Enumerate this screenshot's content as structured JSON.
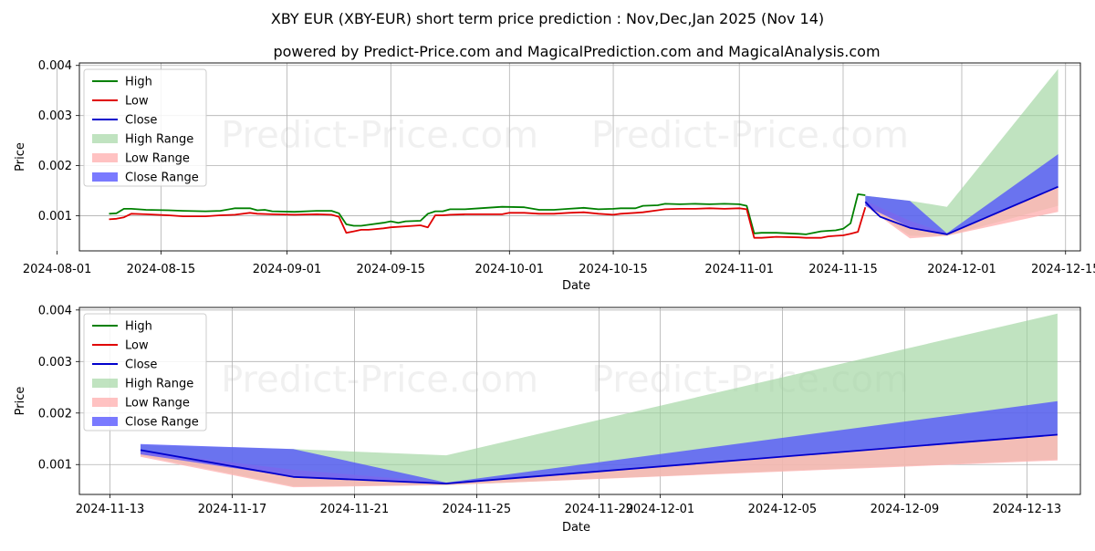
{
  "title": "XBY EUR (XBY-EUR) short term price prediction : Nov,Dec,Jan 2025 (Nov 14)",
  "subtitle": "powered by Predict-Price.com and MagicalPrediction.com and MagicalAnalysis.com",
  "watermark": "Predict-Price.com",
  "colors": {
    "high": "#008000",
    "low": "#e00000",
    "close": "#0000cc",
    "high_range": "#9ed49e",
    "low_range": "#ffb3b3",
    "close_range": "#4d4dff",
    "grid": "#b0b0b0"
  },
  "chart_data": [
    {
      "type": "line",
      "title": "",
      "xlabel": "Date",
      "ylabel": "Price",
      "xlim": [
        "2024-08-04",
        "2024-12-17"
      ],
      "ylim": [
        0.0003,
        0.00405
      ],
      "xticks": [
        "2024-08-01",
        "2024-08-15",
        "2024-09-01",
        "2024-09-15",
        "2024-10-01",
        "2024-10-15",
        "2024-11-01",
        "2024-11-15",
        "2024-12-01",
        "2024-12-15"
      ],
      "yticks": [
        0.001,
        0.002,
        0.003,
        0.004
      ],
      "ytick_labels": [
        "0.001",
        "0.002",
        "0.003",
        "0.004"
      ],
      "grid": true,
      "legend": {
        "location": "top-left",
        "entries": [
          "High",
          "Low",
          "Close",
          "High Range",
          "Low Range",
          "Close Range"
        ]
      },
      "series": [
        {
          "name": "High",
          "points": [
            [
              "2024-08-08",
              0.00104
            ],
            [
              "2024-08-09",
              0.00105
            ],
            [
              "2024-08-10",
              0.00114
            ],
            [
              "2024-08-11",
              0.00114
            ],
            [
              "2024-08-13",
              0.00112
            ],
            [
              "2024-08-16",
              0.00111
            ],
            [
              "2024-08-18",
              0.0011
            ],
            [
              "2024-08-21",
              0.00109
            ],
            [
              "2024-08-23",
              0.0011
            ],
            [
              "2024-08-25",
              0.00115
            ],
            [
              "2024-08-27",
              0.00115
            ],
            [
              "2024-08-28",
              0.00111
            ],
            [
              "2024-08-29",
              0.00112
            ],
            [
              "2024-08-30",
              0.00109
            ],
            [
              "2024-09-02",
              0.00108
            ],
            [
              "2024-09-05",
              0.0011
            ],
            [
              "2024-09-07",
              0.0011
            ],
            [
              "2024-09-08",
              0.00105
            ],
            [
              "2024-09-09",
              0.00083
            ],
            [
              "2024-09-10",
              0.0008
            ],
            [
              "2024-09-11",
              0.0008
            ],
            [
              "2024-09-12",
              0.00082
            ],
            [
              "2024-09-14",
              0.00086
            ],
            [
              "2024-09-15",
              0.00089
            ],
            [
              "2024-09-16",
              0.00086
            ],
            [
              "2024-09-17",
              0.00089
            ],
            [
              "2024-09-19",
              0.0009
            ],
            [
              "2024-09-20",
              0.00104
            ],
            [
              "2024-09-21",
              0.00109
            ],
            [
              "2024-09-22",
              0.00109
            ],
            [
              "2024-09-23",
              0.00113
            ],
            [
              "2024-09-25",
              0.00113
            ],
            [
              "2024-09-27",
              0.00115
            ],
            [
              "2024-09-30",
              0.00118
            ],
            [
              "2024-10-03",
              0.00117
            ],
            [
              "2024-10-05",
              0.00112
            ],
            [
              "2024-10-07",
              0.00112
            ],
            [
              "2024-10-09",
              0.00114
            ],
            [
              "2024-10-11",
              0.00116
            ],
            [
              "2024-10-13",
              0.00113
            ],
            [
              "2024-10-15",
              0.00114
            ],
            [
              "2024-10-16",
              0.00115
            ],
            [
              "2024-10-18",
              0.00115
            ],
            [
              "2024-10-19",
              0.0012
            ],
            [
              "2024-10-21",
              0.00121
            ],
            [
              "2024-10-22",
              0.00124
            ],
            [
              "2024-10-24",
              0.00123
            ],
            [
              "2024-10-26",
              0.00124
            ],
            [
              "2024-10-28",
              0.00123
            ],
            [
              "2024-10-30",
              0.00124
            ],
            [
              "2024-11-01",
              0.00123
            ],
            [
              "2024-11-02",
              0.0012
            ],
            [
              "2024-11-03",
              0.00065
            ],
            [
              "2024-11-04",
              0.00066
            ],
            [
              "2024-11-06",
              0.00066
            ],
            [
              "2024-11-09",
              0.00064
            ],
            [
              "2024-11-10",
              0.00063
            ],
            [
              "2024-11-11",
              0.00066
            ],
            [
              "2024-11-12",
              0.00069
            ],
            [
              "2024-11-13",
              0.0007
            ],
            [
              "2024-11-14",
              0.00071
            ],
            [
              "2024-11-15",
              0.00074
            ],
            [
              "2024-11-16",
              0.00085
            ],
            [
              "2024-11-17",
              0.00143
            ],
            [
              "2024-11-18",
              0.00141
            ]
          ]
        },
        {
          "name": "Low",
          "points": [
            [
              "2024-08-08",
              0.00093
            ],
            [
              "2024-08-09",
              0.00094
            ],
            [
              "2024-08-10",
              0.00097
            ],
            [
              "2024-08-11",
              0.00104
            ],
            [
              "2024-08-13",
              0.00103
            ],
            [
              "2024-08-16",
              0.00101
            ],
            [
              "2024-08-18",
              0.00099
            ],
            [
              "2024-08-21",
              0.00099
            ],
            [
              "2024-08-23",
              0.00101
            ],
            [
              "2024-08-25",
              0.00102
            ],
            [
              "2024-08-27",
              0.00106
            ],
            [
              "2024-08-28",
              0.00104
            ],
            [
              "2024-08-30",
              0.00103
            ],
            [
              "2024-09-02",
              0.00102
            ],
            [
              "2024-09-05",
              0.00103
            ],
            [
              "2024-09-07",
              0.00102
            ],
            [
              "2024-09-08",
              0.00098
            ],
            [
              "2024-09-09",
              0.00066
            ],
            [
              "2024-09-10",
              0.00069
            ],
            [
              "2024-09-11",
              0.00072
            ],
            [
              "2024-09-12",
              0.00072
            ],
            [
              "2024-09-14",
              0.00075
            ],
            [
              "2024-09-15",
              0.00077
            ],
            [
              "2024-09-17",
              0.00079
            ],
            [
              "2024-09-19",
              0.00081
            ],
            [
              "2024-09-20",
              0.00077
            ],
            [
              "2024-09-21",
              0.00101
            ],
            [
              "2024-09-22",
              0.00101
            ],
            [
              "2024-09-23",
              0.00102
            ],
            [
              "2024-09-25",
              0.00103
            ],
            [
              "2024-09-27",
              0.00103
            ],
            [
              "2024-09-30",
              0.00103
            ],
            [
              "2024-10-01",
              0.00106
            ],
            [
              "2024-10-03",
              0.00106
            ],
            [
              "2024-10-05",
              0.00104
            ],
            [
              "2024-10-07",
              0.00104
            ],
            [
              "2024-10-09",
              0.00106
            ],
            [
              "2024-10-11",
              0.00107
            ],
            [
              "2024-10-13",
              0.00104
            ],
            [
              "2024-10-15",
              0.00102
            ],
            [
              "2024-10-16",
              0.00104
            ],
            [
              "2024-10-18",
              0.00106
            ],
            [
              "2024-10-19",
              0.00107
            ],
            [
              "2024-10-21",
              0.00111
            ],
            [
              "2024-10-22",
              0.00113
            ],
            [
              "2024-10-24",
              0.00114
            ],
            [
              "2024-10-26",
              0.00114
            ],
            [
              "2024-10-28",
              0.00115
            ],
            [
              "2024-10-30",
              0.00114
            ],
            [
              "2024-11-01",
              0.00115
            ],
            [
              "2024-11-02",
              0.00113
            ],
            [
              "2024-11-03",
              0.00056
            ],
            [
              "2024-11-04",
              0.00056
            ],
            [
              "2024-11-06",
              0.00058
            ],
            [
              "2024-11-09",
              0.00057
            ],
            [
              "2024-11-10",
              0.00056
            ],
            [
              "2024-11-12",
              0.00056
            ],
            [
              "2024-11-13",
              0.00059
            ],
            [
              "2024-11-14",
              0.0006
            ],
            [
              "2024-11-15",
              0.00061
            ],
            [
              "2024-11-16",
              0.00064
            ],
            [
              "2024-11-17",
              0.00068
            ],
            [
              "2024-11-18",
              0.00117
            ]
          ]
        },
        {
          "name": "Close",
          "points": [
            [
              "2024-11-18",
              0.00128
            ],
            [
              "2024-11-19",
              0.00112
            ],
            [
              "2024-11-20",
              0.00098
            ],
            [
              "2024-11-24",
              0.00076
            ],
            [
              "2024-11-29",
              0.00063
            ],
            [
              "2024-12-14",
              0.00158
            ]
          ]
        }
      ],
      "ranges": [
        {
          "name": "High Range",
          "upper": [
            [
              "2024-11-18",
              0.0014
            ],
            [
              "2024-11-24",
              0.0013
            ],
            [
              "2024-11-29",
              0.00118
            ],
            [
              "2024-12-14",
              0.00393
            ]
          ],
          "lower": [
            [
              "2024-11-18",
              0.0012
            ],
            [
              "2024-11-24",
              0.0006
            ],
            [
              "2024-11-29",
              0.0006
            ],
            [
              "2024-12-14",
              0.0012
            ]
          ]
        },
        {
          "name": "Low Range",
          "upper": [
            [
              "2024-11-18",
              0.0013
            ],
            [
              "2024-11-24",
              0.0009
            ],
            [
              "2024-11-29",
              0.00065
            ],
            [
              "2024-12-14",
              0.0016
            ]
          ],
          "lower": [
            [
              "2024-11-18",
              0.0012
            ],
            [
              "2024-11-24",
              0.00055
            ],
            [
              "2024-11-29",
              0.0006
            ],
            [
              "2024-12-14",
              0.00108
            ]
          ]
        },
        {
          "name": "Close Range",
          "upper": [
            [
              "2024-11-18",
              0.0014
            ],
            [
              "2024-11-24",
              0.0013
            ],
            [
              "2024-11-29",
              0.00065
            ],
            [
              "2024-12-14",
              0.00223
            ]
          ],
          "lower": [
            [
              "2024-11-18",
              0.0012
            ],
            [
              "2024-11-24",
              0.00077
            ],
            [
              "2024-11-29",
              0.00062
            ],
            [
              "2024-12-14",
              0.00158
            ]
          ]
        }
      ]
    },
    {
      "type": "line",
      "title": "",
      "xlabel": "Date",
      "ylabel": "Price",
      "xlim": [
        "2024-11-12",
        "2024-12-14T18:00"
      ],
      "ylim": [
        0.00042,
        0.00405
      ],
      "xticks": [
        "2024-11-13",
        "2024-11-17",
        "2024-11-21",
        "2024-11-25",
        "2024-11-29",
        "2024-12-01",
        "2024-12-05",
        "2024-12-09",
        "2024-12-13"
      ],
      "yticks": [
        0.001,
        0.002,
        0.003,
        0.004
      ],
      "ytick_labels": [
        "0.001",
        "0.002",
        "0.003",
        "0.004"
      ],
      "grid": true,
      "legend": {
        "location": "top-left",
        "entries": [
          "High",
          "Low",
          "Close",
          "High Range",
          "Low Range",
          "Close Range"
        ]
      },
      "series": [
        {
          "name": "Close",
          "points": [
            [
              "2024-11-14",
              0.00128
            ],
            [
              "2024-11-19",
              0.00076
            ],
            [
              "2024-11-24",
              0.00063
            ],
            [
              "2024-12-14",
              0.00158
            ]
          ]
        }
      ],
      "ranges": [
        {
          "name": "High Range",
          "upper": [
            [
              "2024-11-14",
              0.00138
            ],
            [
              "2024-11-19",
              0.0013
            ],
            [
              "2024-11-24",
              0.00118
            ],
            [
              "2024-12-14",
              0.00393
            ]
          ],
          "lower": [
            [
              "2024-11-14",
              0.00118
            ],
            [
              "2024-11-19",
              0.00058
            ],
            [
              "2024-11-24",
              0.0006
            ],
            [
              "2024-12-14",
              0.0011
            ]
          ]
        },
        {
          "name": "Low Range",
          "upper": [
            [
              "2024-11-14",
              0.00125
            ],
            [
              "2024-11-19",
              0.0009
            ],
            [
              "2024-11-24",
              0.00065
            ],
            [
              "2024-12-14",
              0.0016
            ]
          ],
          "lower": [
            [
              "2024-11-14",
              0.00115
            ],
            [
              "2024-11-19",
              0.00056
            ],
            [
              "2024-11-24",
              0.0006
            ],
            [
              "2024-12-14",
              0.00108
            ]
          ]
        },
        {
          "name": "Close Range",
          "upper": [
            [
              "2024-11-14",
              0.0014
            ],
            [
              "2024-11-19",
              0.0013
            ],
            [
              "2024-11-24",
              0.00065
            ],
            [
              "2024-12-14",
              0.00223
            ]
          ],
          "lower": [
            [
              "2024-11-14",
              0.0012
            ],
            [
              "2024-11-19",
              0.00076
            ],
            [
              "2024-11-24",
              0.00062
            ],
            [
              "2024-12-14",
              0.00158
            ]
          ]
        }
      ]
    }
  ]
}
